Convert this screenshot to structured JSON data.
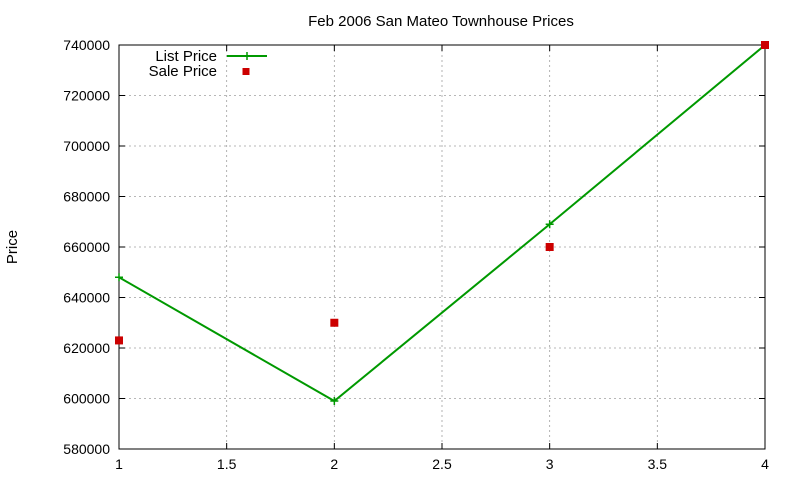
{
  "chart_data": {
    "type": "line",
    "title": "Feb 2006 San Mateo Townhouse Prices",
    "xlabel": "",
    "ylabel": "Price",
    "xlim": [
      1,
      4
    ],
    "ylim": [
      580000,
      740000
    ],
    "x_ticks": [
      1,
      1.5,
      2,
      2.5,
      3,
      3.5,
      4
    ],
    "x_tick_labels": [
      "1",
      "1.5",
      "2",
      "2.5",
      "3",
      "3.5",
      "4"
    ],
    "y_ticks": [
      580000,
      600000,
      620000,
      640000,
      660000,
      680000,
      700000,
      720000,
      740000
    ],
    "y_tick_labels": [
      "580000",
      "600000",
      "620000",
      "640000",
      "660000",
      "680000",
      "700000",
      "720000",
      "740000"
    ],
    "grid": true,
    "legend_position": "top-left",
    "series": [
      {
        "name": "List Price",
        "style": "line-with-plus-markers",
        "color": "#009900",
        "x": [
          1,
          2,
          3,
          4
        ],
        "y": [
          648000,
          599000,
          669000,
          740000
        ]
      },
      {
        "name": "Sale Price",
        "style": "square-markers",
        "color": "#cc0000",
        "x": [
          1,
          2,
          3,
          4
        ],
        "y": [
          623000,
          630000,
          660000,
          740000
        ]
      }
    ]
  }
}
